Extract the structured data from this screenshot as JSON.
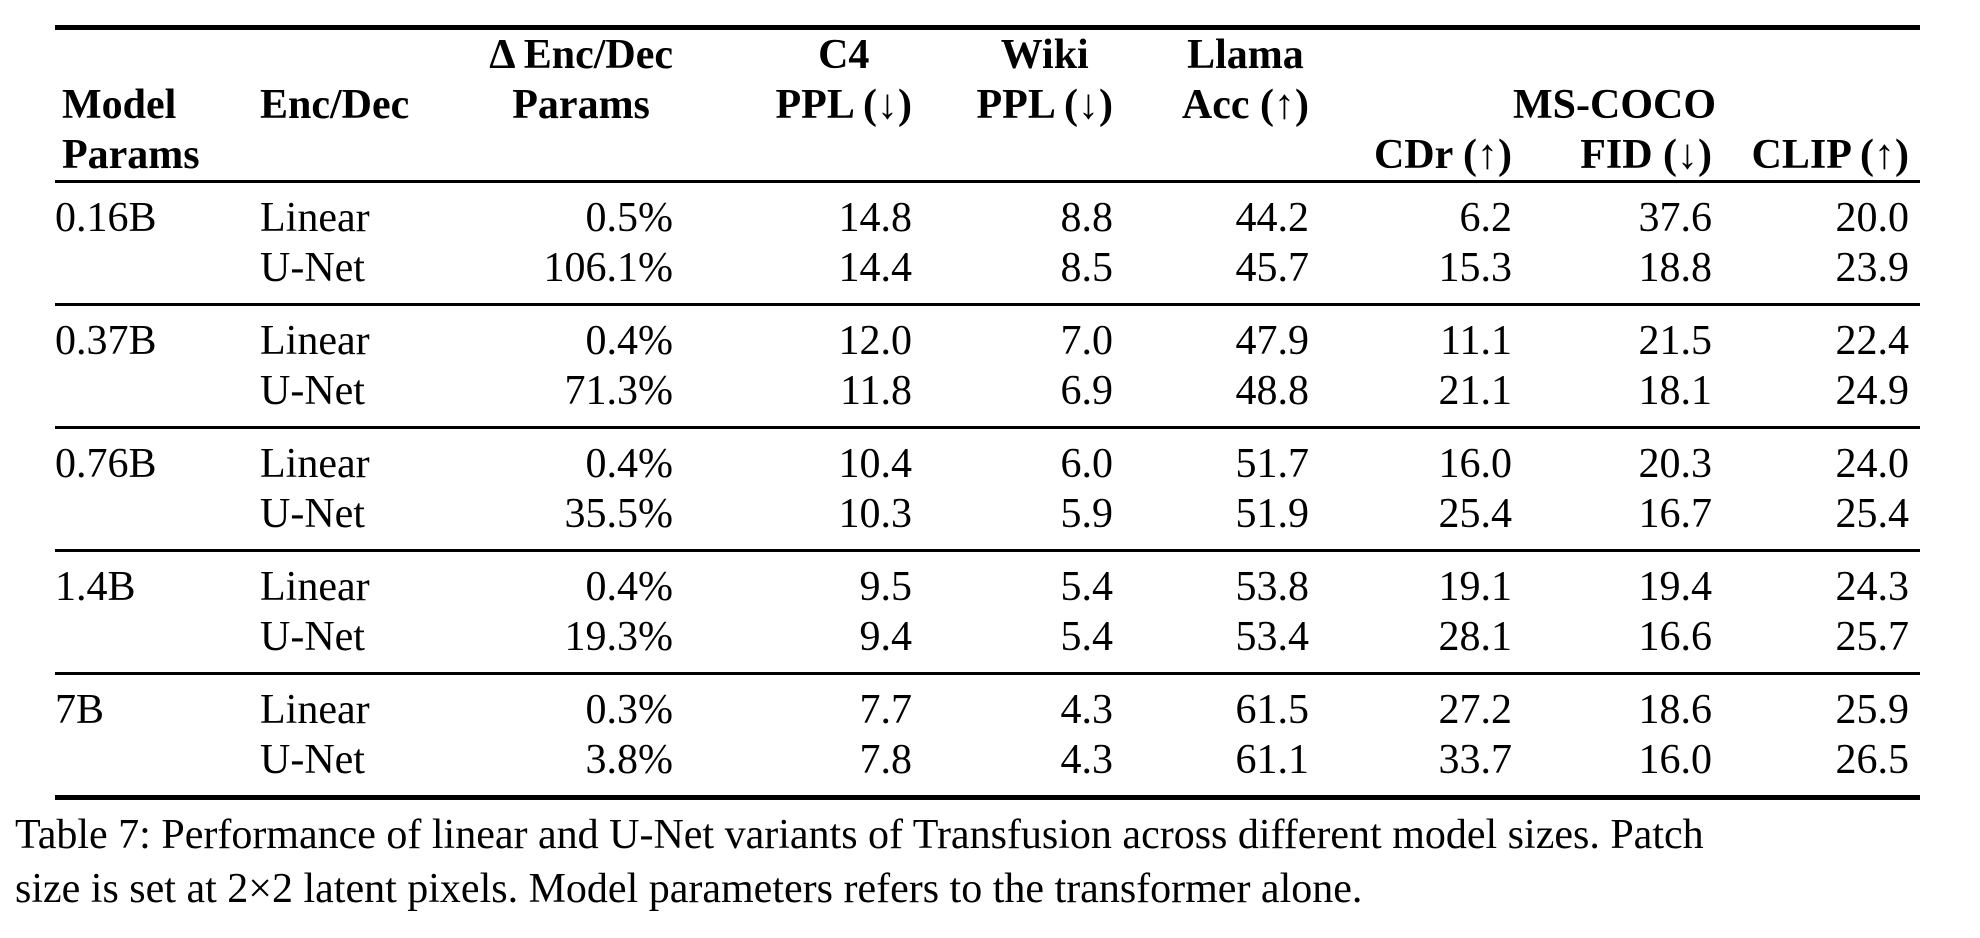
{
  "table": {
    "header": {
      "model_lines": [
        "Model",
        "Params"
      ],
      "enc_dec": "Enc/Dec",
      "delta_lines": [
        "Δ Enc/Dec",
        "Params"
      ],
      "c4_lines": [
        "C4",
        "PPL (↓)"
      ],
      "wiki_lines": [
        "Wiki",
        "PPL (↓)"
      ],
      "llama_lines": [
        "Llama",
        "Acc (↑)"
      ],
      "mscoco": "MS-COCO",
      "cdr": "CDr (↑)",
      "fid": "FID (↓)",
      "clip": "CLIP (↑)"
    },
    "groups": [
      {
        "model_params": "0.16B",
        "rows": [
          {
            "enc_dec": "Linear",
            "values": [
              "0.5%",
              "14.8",
              "8.8",
              "44.2",
              "6.2",
              "37.6",
              "20.0"
            ]
          },
          {
            "enc_dec": "U-Net",
            "values": [
              "106.1%",
              "14.4",
              "8.5",
              "45.7",
              "15.3",
              "18.8",
              "23.9"
            ]
          }
        ]
      },
      {
        "model_params": "0.37B",
        "rows": [
          {
            "enc_dec": "Linear",
            "values": [
              "0.4%",
              "12.0",
              "7.0",
              "47.9",
              "11.1",
              "21.5",
              "22.4"
            ]
          },
          {
            "enc_dec": "U-Net",
            "values": [
              "71.3%",
              "11.8",
              "6.9",
              "48.8",
              "21.1",
              "18.1",
              "24.9"
            ]
          }
        ]
      },
      {
        "model_params": "0.76B",
        "rows": [
          {
            "enc_dec": "Linear",
            "values": [
              "0.4%",
              "10.4",
              "6.0",
              "51.7",
              "16.0",
              "20.3",
              "24.0"
            ]
          },
          {
            "enc_dec": "U-Net",
            "values": [
              "35.5%",
              "10.3",
              "5.9",
              "51.9",
              "25.4",
              "16.7",
              "25.4"
            ]
          }
        ]
      },
      {
        "model_params": "1.4B",
        "rows": [
          {
            "enc_dec": "Linear",
            "values": [
              "0.4%",
              "9.5",
              "5.4",
              "53.8",
              "19.1",
              "19.4",
              "24.3"
            ]
          },
          {
            "enc_dec": "U-Net",
            "values": [
              "19.3%",
              "9.4",
              "5.4",
              "53.4",
              "28.1",
              "16.6",
              "25.7"
            ]
          }
        ]
      },
      {
        "model_params": "7B",
        "rows": [
          {
            "enc_dec": "Linear",
            "values": [
              "0.3%",
              "7.7",
              "4.3",
              "61.5",
              "27.2",
              "18.6",
              "25.9"
            ]
          },
          {
            "enc_dec": "U-Net",
            "values": [
              "3.8%",
              "7.8",
              "4.3",
              "61.1",
              "33.7",
              "16.0",
              "26.5"
            ]
          }
        ]
      }
    ],
    "caption_lines": [
      "Table 7: Performance of linear and U-Net variants of Transfusion across different model sizes. Patch",
      "size is set at 2×2 latent pixels. Model parameters refers to the transformer alone."
    ]
  }
}
